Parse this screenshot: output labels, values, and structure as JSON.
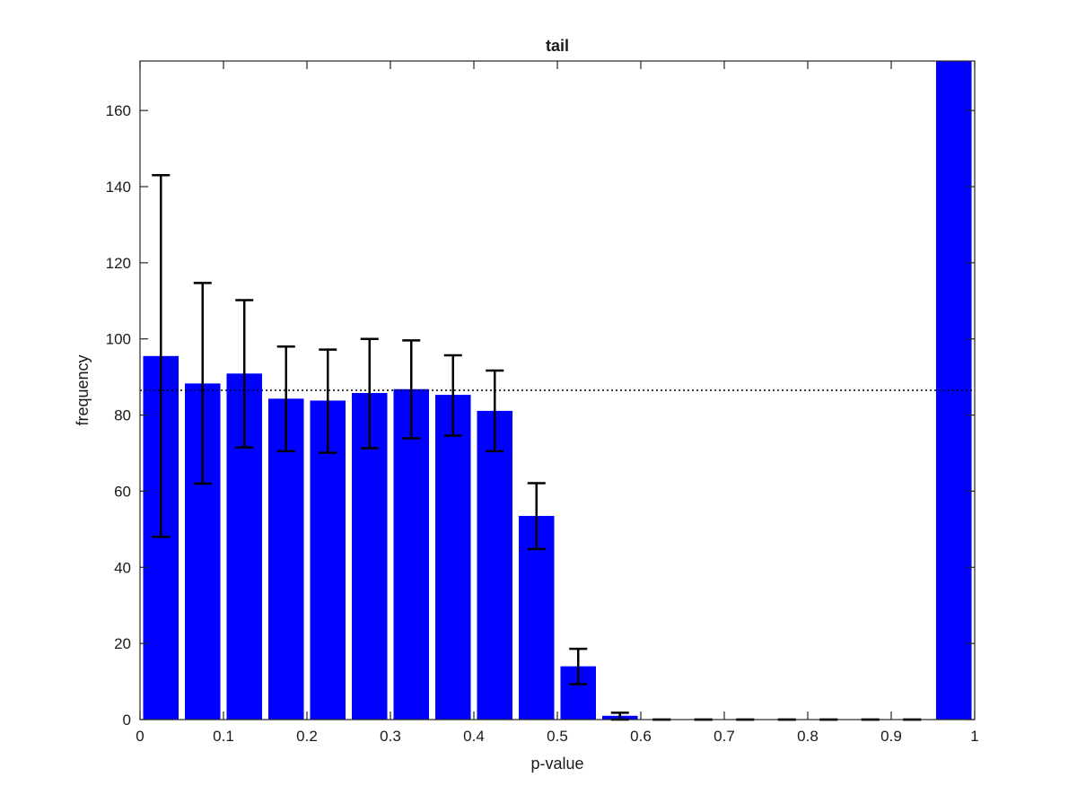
{
  "chart_data": {
    "type": "bar",
    "title": "tail",
    "xlabel": "p-value",
    "ylabel": "frequency",
    "xlim": [
      0,
      1
    ],
    "ylim": [
      0,
      173
    ],
    "x_ticks": [
      0,
      0.1,
      0.2,
      0.3,
      0.4,
      0.5,
      0.6,
      0.7,
      0.8,
      0.9,
      1
    ],
    "x_tick_labels": [
      "0",
      "0.1",
      "0.2",
      "0.3",
      "0.4",
      "0.5",
      "0.6",
      "0.7",
      "0.8",
      "0.9",
      "1"
    ],
    "y_ticks": [
      0,
      20,
      40,
      60,
      80,
      100,
      120,
      140,
      160
    ],
    "y_tick_labels": [
      "0",
      "20",
      "40",
      "60",
      "80",
      "100",
      "120",
      "140",
      "160"
    ],
    "bin_width": 0.05,
    "bar_color": "#0000ff",
    "errorbar_color": "#000000",
    "reference_line": 86.5,
    "bars": [
      {
        "x": 0.025,
        "value": 95.5,
        "err_low": 48,
        "err_high": 143
      },
      {
        "x": 0.075,
        "value": 88.3,
        "err_low": 62,
        "err_high": 114.7
      },
      {
        "x": 0.125,
        "value": 90.9,
        "err_low": 71.5,
        "err_high": 110.2
      },
      {
        "x": 0.175,
        "value": 84.3,
        "err_low": 70.5,
        "err_high": 98
      },
      {
        "x": 0.225,
        "value": 83.8,
        "err_low": 70.1,
        "err_high": 97.2
      },
      {
        "x": 0.275,
        "value": 85.8,
        "err_low": 71.3,
        "err_high": 100
      },
      {
        "x": 0.325,
        "value": 86.8,
        "err_low": 73.9,
        "err_high": 99.6
      },
      {
        "x": 0.375,
        "value": 85.3,
        "err_low": 74.6,
        "err_high": 95.7
      },
      {
        "x": 0.425,
        "value": 81.1,
        "err_low": 70.5,
        "err_high": 91.7
      },
      {
        "x": 0.475,
        "value": 53.5,
        "err_low": 44.8,
        "err_high": 62.1
      },
      {
        "x": 0.525,
        "value": 14,
        "err_low": 9.3,
        "err_high": 18.6
      },
      {
        "x": 0.575,
        "value": 1,
        "err_low": 0,
        "err_high": 1.8
      },
      {
        "x": 0.625,
        "value": 0,
        "err_low": 0,
        "err_high": 0
      },
      {
        "x": 0.675,
        "value": 0,
        "err_low": 0,
        "err_high": 0
      },
      {
        "x": 0.725,
        "value": 0,
        "err_low": 0,
        "err_high": 0
      },
      {
        "x": 0.775,
        "value": 0,
        "err_low": 0,
        "err_high": 0
      },
      {
        "x": 0.825,
        "value": 0,
        "err_low": 0,
        "err_high": 0
      },
      {
        "x": 0.875,
        "value": 0,
        "err_low": 0,
        "err_high": 0
      },
      {
        "x": 0.925,
        "value": 0,
        "err_low": 0,
        "err_high": 0
      },
      {
        "x": 0.975,
        "value": 173,
        "err_low": null,
        "err_high": null
      }
    ]
  }
}
